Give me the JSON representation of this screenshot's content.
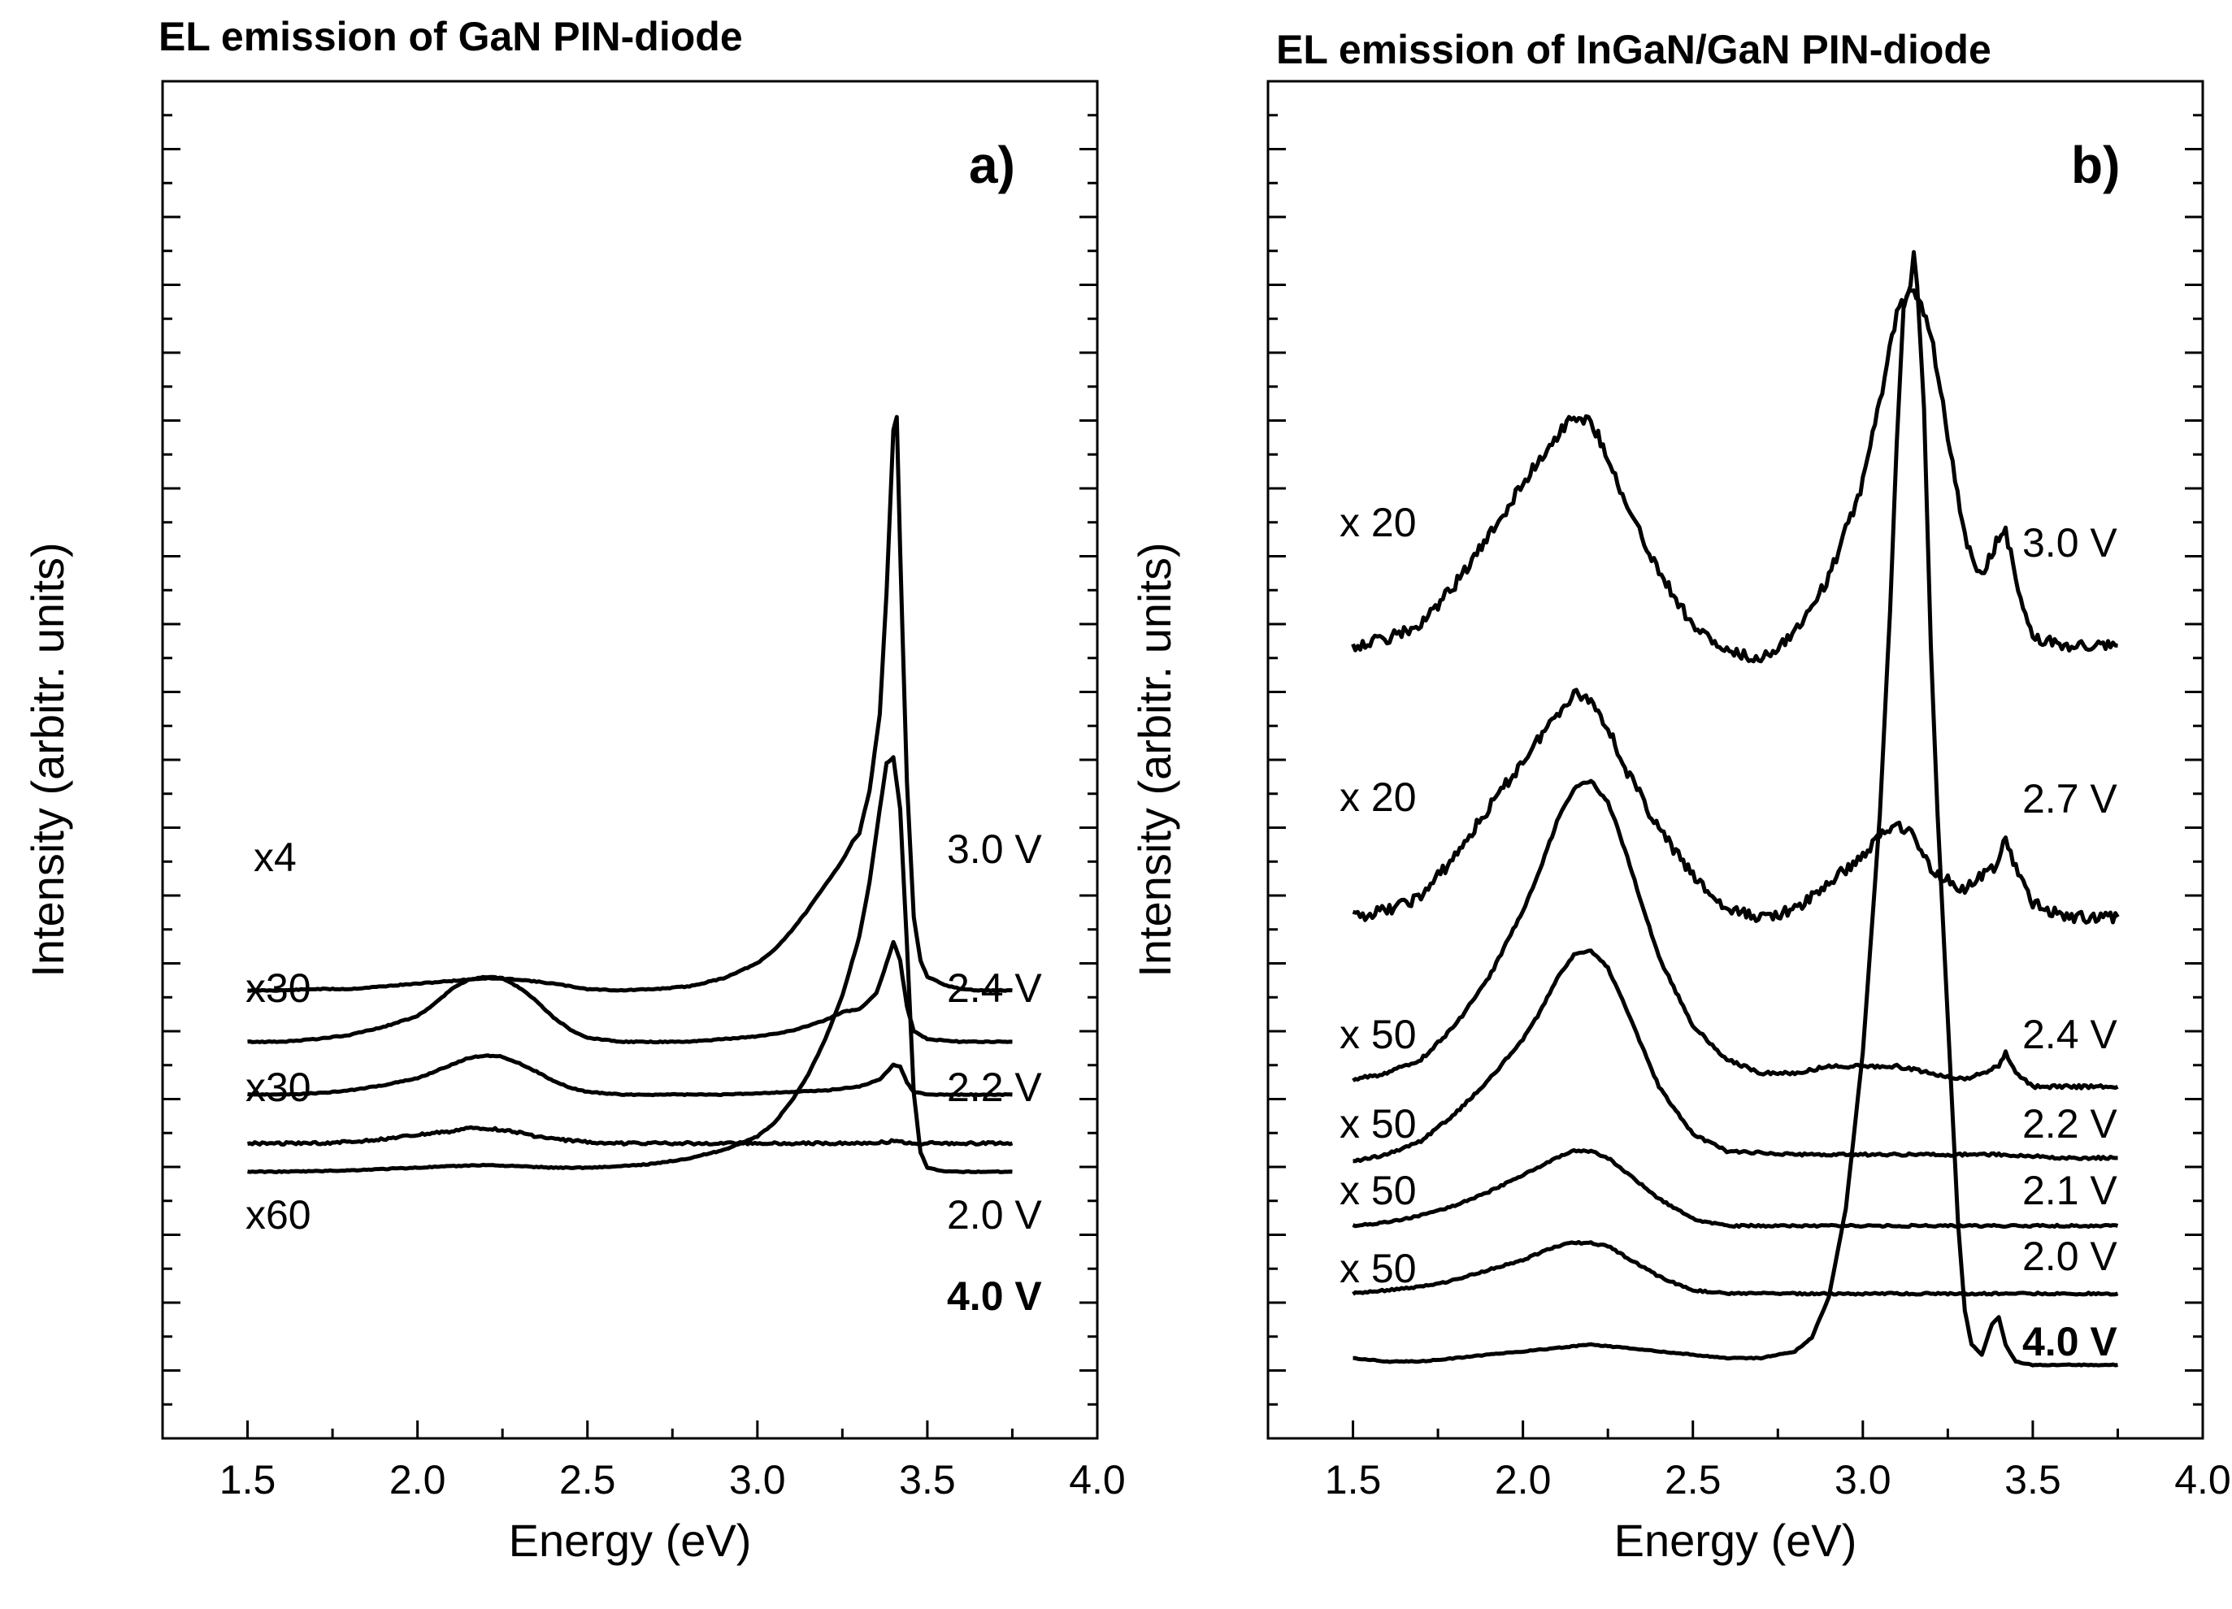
{
  "chart_data": [
    {
      "type": "line",
      "panel": "a)",
      "title": "EL emission of GaN PIN-diode",
      "xlabel": "Energy (eV)",
      "ylabel": "Intensity (arbitr. units)",
      "xlim": [
        1.25,
        4.0
      ],
      "xticks": [
        "1.5",
        "2.0",
        "2.5",
        "3.0",
        "3.5",
        "4.0"
      ],
      "y_tick_labels": "none",
      "series": [
        {
          "name": "3.0 V",
          "multiplier": "x4",
          "bold": false,
          "x": [
            1.5,
            1.6,
            1.7,
            1.8,
            1.9,
            2.0,
            2.1,
            2.2,
            2.3,
            2.4,
            2.5,
            2.6,
            2.7,
            2.8,
            2.9,
            3.0,
            3.05,
            3.1,
            3.15,
            3.2,
            3.25,
            3.28,
            3.3,
            3.33,
            3.36,
            3.38,
            3.4,
            3.41,
            3.42,
            3.44,
            3.46,
            3.48,
            3.5,
            3.55,
            3.6,
            3.65,
            3.75
          ],
          "y": [
            2.8,
            2.8,
            2.85,
            2.85,
            2.95,
            3.05,
            3.15,
            3.25,
            3.2,
            3.05,
            2.85,
            2.8,
            2.85,
            2.95,
            3.25,
            3.8,
            4.3,
            5.0,
            5.8,
            6.7,
            7.6,
            8.3,
            8.6,
            10.2,
            13,
            17.5,
            23.5,
            24.0,
            19.0,
            10.5,
            5.5,
            3.9,
            3.3,
            3.0,
            2.85,
            2.8,
            2.8
          ]
        },
        {
          "name": "2.4 V",
          "multiplier": "x30",
          "bold": false,
          "x": [
            1.5,
            1.6,
            1.7,
            1.8,
            1.9,
            2.0,
            2.05,
            2.1,
            2.15,
            2.2,
            2.25,
            2.3,
            2.35,
            2.4,
            2.45,
            2.5,
            2.6,
            2.7,
            2.8,
            2.9,
            3.0,
            3.1,
            3.2,
            3.25,
            3.3,
            3.35,
            3.38,
            3.4,
            3.42,
            3.44,
            3.46,
            3.5,
            3.55,
            3.6,
            3.75
          ],
          "y": [
            0.9,
            0.9,
            1.0,
            1.15,
            1.45,
            1.85,
            2.3,
            2.85,
            3.2,
            3.3,
            3.25,
            2.9,
            2.4,
            1.8,
            1.35,
            1.05,
            0.9,
            0.9,
            0.9,
            1.0,
            1.1,
            1.3,
            1.7,
            2.0,
            2.1,
            2.7,
            3.8,
            4.6,
            3.9,
            2.2,
            1.3,
            1.0,
            0.95,
            0.9,
            0.9
          ]
        },
        {
          "name": "2.2 V",
          "multiplier": "x30",
          "bold": false,
          "x": [
            1.5,
            1.6,
            1.7,
            1.8,
            1.9,
            2.0,
            2.05,
            2.1,
            2.15,
            2.2,
            2.25,
            2.3,
            2.35,
            2.4,
            2.45,
            2.5,
            2.6,
            2.7,
            2.8,
            2.9,
            3.0,
            3.1,
            3.2,
            3.3,
            3.36,
            3.4,
            3.42,
            3.44,
            3.46,
            3.5,
            3.6,
            3.75
          ],
          "y": [
            -1.05,
            -1.05,
            -1.0,
            -0.9,
            -0.7,
            -0.45,
            -0.2,
            0.05,
            0.3,
            0.4,
            0.35,
            0.1,
            -0.2,
            -0.55,
            -0.8,
            -0.95,
            -1.05,
            -1.05,
            -1.05,
            -1.05,
            -1.0,
            -0.95,
            -0.9,
            -0.75,
            -0.5,
            0.05,
            0.0,
            -0.6,
            -0.95,
            -1.05,
            -1.05,
            -1.05
          ]
        },
        {
          "name": "2.0 V",
          "multiplier": "x60",
          "bold": false,
          "x": [
            1.5,
            1.6,
            1.7,
            1.8,
            1.9,
            2.0,
            2.1,
            2.15,
            2.2,
            2.25,
            2.3,
            2.35,
            2.4,
            2.5,
            2.6,
            2.8,
            3.0,
            3.2,
            3.3,
            3.38,
            3.41,
            3.44,
            3.5,
            3.6,
            3.75
          ],
          "y": [
            -2.85,
            -2.85,
            -2.85,
            -2.8,
            -2.7,
            -2.55,
            -2.4,
            -2.3,
            -2.3,
            -2.35,
            -2.45,
            -2.6,
            -2.7,
            -2.8,
            -2.85,
            -2.85,
            -2.85,
            -2.85,
            -2.85,
            -2.8,
            -2.75,
            -2.85,
            -2.85,
            -2.85,
            -2.85
          ]
        },
        {
          "name": "4.0 V",
          "multiplier": "",
          "bold": true,
          "x": [
            1.5,
            1.6,
            1.7,
            1.8,
            1.9,
            2.0,
            2.1,
            2.2,
            2.3,
            2.4,
            2.5,
            2.6,
            2.7,
            2.8,
            2.9,
            3.0,
            3.05,
            3.1,
            3.15,
            3.2,
            3.25,
            3.3,
            3.33,
            3.36,
            3.38,
            3.4,
            3.42,
            3.44,
            3.46,
            3.48,
            3.5,
            3.55,
            3.6,
            3.75
          ],
          "y": [
            -3.9,
            -3.9,
            -3.88,
            -3.85,
            -3.8,
            -3.75,
            -3.7,
            -3.65,
            -3.7,
            -3.75,
            -3.75,
            -3.7,
            -3.6,
            -3.4,
            -3.1,
            -2.6,
            -2.1,
            -1.3,
            -0.3,
            1.0,
            2.6,
            4.8,
            6.8,
            9.5,
            11.2,
            11.4,
            9.5,
            4.5,
            -1.0,
            -3.2,
            -3.75,
            -3.9,
            -3.9,
            -3.9
          ]
        }
      ],
      "annotations": [
        "x4",
        "x30",
        "x30",
        "x60",
        "3.0 V",
        "2.4 V",
        "2.2 V",
        "2.0 V",
        "4.0 V"
      ]
    },
    {
      "type": "line",
      "panel": "b)",
      "title": "EL emission of InGaN/GaN PIN-diode",
      "xlabel": "Energy (eV)",
      "ylabel": "Intensity (arbitr. units)",
      "xlim": [
        1.25,
        4.0
      ],
      "xticks": [
        "1.5",
        "2.0",
        "2.5",
        "3.0",
        "3.5",
        "4.0"
      ],
      "y_tick_labels": "none",
      "series": [
        {
          "name": "3.0 V",
          "multiplier": "x 20",
          "bold": false,
          "x": [
            1.5,
            1.6,
            1.7,
            1.8,
            1.9,
            2.0,
            2.1,
            2.15,
            2.2,
            2.25,
            2.3,
            2.4,
            2.5,
            2.6,
            2.7,
            2.8,
            2.9,
            3.0,
            3.05,
            3.1,
            3.15,
            3.2,
            3.25,
            3.3,
            3.35,
            3.4,
            3.42,
            3.45,
            3.5,
            3.6,
            3.75
          ],
          "y": [
            3.0,
            3.1,
            3.3,
            3.9,
            4.6,
            5.4,
            6.1,
            6.4,
            6.3,
            5.8,
            5.1,
            4.1,
            3.3,
            2.9,
            2.8,
            3.2,
            4.0,
            5.4,
            6.6,
            7.9,
            8.3,
            7.6,
            6.1,
            4.6,
            4.0,
            4.6,
            4.7,
            4.0,
            3.1,
            3.0,
            3.0
          ]
        },
        {
          "name": "2.7 V",
          "multiplier": "x 20",
          "bold": false,
          "x": [
            1.5,
            1.6,
            1.7,
            1.8,
            1.9,
            2.0,
            2.1,
            2.15,
            2.2,
            2.25,
            2.3,
            2.4,
            2.5,
            2.6,
            2.7,
            2.8,
            2.9,
            3.0,
            3.05,
            3.1,
            3.15,
            3.2,
            3.3,
            3.4,
            3.42,
            3.45,
            3.5,
            3.6,
            3.75
          ],
          "y": [
            -1.0,
            -0.9,
            -0.7,
            -0.1,
            0.6,
            1.3,
            2.0,
            2.3,
            2.2,
            1.8,
            1.2,
            0.3,
            -0.4,
            -0.9,
            -1.0,
            -0.9,
            -0.5,
            -0.1,
            0.2,
            0.4,
            0.2,
            -0.3,
            -0.6,
            -0.2,
            0.2,
            -0.3,
            -0.8,
            -1.0,
            -1.0
          ]
        },
        {
          "name": "2.4 V",
          "multiplier": "x 50",
          "bold": false,
          "x": [
            1.5,
            1.6,
            1.7,
            1.8,
            1.9,
            2.0,
            2.05,
            2.1,
            2.15,
            2.2,
            2.25,
            2.3,
            2.35,
            2.4,
            2.5,
            2.6,
            2.7,
            2.8,
            2.9,
            3.0,
            3.1,
            3.2,
            3.3,
            3.4,
            3.42,
            3.45,
            3.5,
            3.6,
            3.75
          ],
          "y": [
            -3.4,
            -3.3,
            -3.1,
            -2.6,
            -1.9,
            -0.9,
            -0.3,
            0.4,
            0.9,
            1.0,
            0.7,
            0.0,
            -0.8,
            -1.6,
            -2.6,
            -3.1,
            -3.3,
            -3.3,
            -3.2,
            -3.2,
            -3.2,
            -3.3,
            -3.4,
            -3.2,
            -3.0,
            -3.3,
            -3.5,
            -3.5,
            -3.5
          ]
        },
        {
          "name": "2.2 V",
          "multiplier": "x 50",
          "bold": false,
          "x": [
            1.5,
            1.6,
            1.7,
            1.8,
            1.9,
            2.0,
            2.05,
            2.1,
            2.15,
            2.2,
            2.25,
            2.3,
            2.35,
            2.4,
            2.5,
            2.6,
            2.8,
            3.0,
            3.2,
            3.4,
            3.6,
            3.75
          ],
          "y": [
            -4.6,
            -4.5,
            -4.3,
            -3.9,
            -3.4,
            -2.8,
            -2.4,
            -1.9,
            -1.55,
            -1.5,
            -1.75,
            -2.3,
            -2.9,
            -3.5,
            -4.2,
            -4.45,
            -4.5,
            -4.5,
            -4.5,
            -4.5,
            -4.55,
            -4.55
          ]
        },
        {
          "name": "2.1 V",
          "multiplier": "x 50",
          "bold": false,
          "x": [
            1.5,
            1.6,
            1.7,
            1.8,
            1.9,
            2.0,
            2.1,
            2.15,
            2.2,
            2.25,
            2.3,
            2.4,
            2.5,
            2.6,
            2.8,
            3.0,
            3.2,
            3.4,
            3.6,
            3.75
          ],
          "y": [
            -5.55,
            -5.5,
            -5.4,
            -5.25,
            -5.05,
            -4.8,
            -4.55,
            -4.45,
            -4.45,
            -4.55,
            -4.75,
            -5.15,
            -5.45,
            -5.55,
            -5.55,
            -5.55,
            -5.55,
            -5.55,
            -5.55,
            -5.55
          ]
        },
        {
          "name": "2.0 V",
          "multiplier": "x 50",
          "bold": false,
          "x": [
            1.5,
            1.6,
            1.7,
            1.8,
            1.9,
            2.0,
            2.1,
            2.15,
            2.2,
            2.25,
            2.3,
            2.4,
            2.5,
            2.6,
            2.8,
            3.0,
            3.2,
            3.4,
            3.6,
            3.75
          ],
          "y": [
            -6.55,
            -6.5,
            -6.45,
            -6.35,
            -6.2,
            -6.05,
            -5.85,
            -5.8,
            -5.8,
            -5.85,
            -6.0,
            -6.3,
            -6.5,
            -6.55,
            -6.55,
            -6.55,
            -6.55,
            -6.55,
            -6.55,
            -6.55
          ]
        },
        {
          "name": "4.0 V",
          "multiplier": "",
          "bold": true,
          "x": [
            1.5,
            1.6,
            1.7,
            1.8,
            1.9,
            2.0,
            2.1,
            2.2,
            2.3,
            2.4,
            2.5,
            2.6,
            2.7,
            2.8,
            2.85,
            2.9,
            2.95,
            3.0,
            3.05,
            3.08,
            3.1,
            3.12,
            3.14,
            3.15,
            3.16,
            3.18,
            3.2,
            3.22,
            3.25,
            3.28,
            3.3,
            3.32,
            3.35,
            3.38,
            3.4,
            3.42,
            3.45,
            3.5,
            3.6,
            3.75
          ],
          "y": [
            -7.5,
            -7.55,
            -7.55,
            -7.5,
            -7.45,
            -7.4,
            -7.35,
            -7.3,
            -7.35,
            -7.4,
            -7.45,
            -7.5,
            -7.5,
            -7.4,
            -7.2,
            -6.6,
            -5.3,
            -3.0,
            0.5,
            3.5,
            6.0,
            8.0,
            8.3,
            8.8,
            8.3,
            6.5,
            3.0,
            0.5,
            -2.5,
            -5.5,
            -6.8,
            -7.3,
            -7.45,
            -7.0,
            -6.9,
            -7.3,
            -7.55,
            -7.6,
            -7.6,
            -7.6
          ]
        }
      ],
      "annotations": [
        "x 20",
        "x 20",
        "x 50",
        "x 50",
        "x 50",
        "x 50",
        "3.0 V",
        "2.7 V",
        "2.4 V",
        "2.2 V",
        "2.1 V",
        "2.0 V",
        "4.0 V"
      ]
    }
  ]
}
